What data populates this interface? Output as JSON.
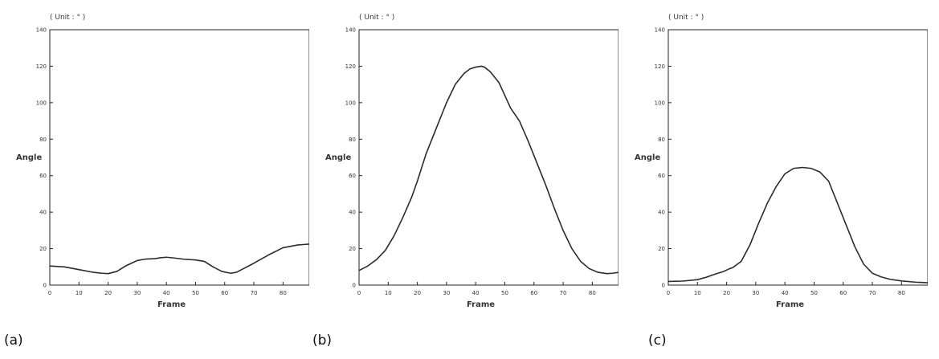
{
  "chart_data": [
    {
      "type": "line",
      "panel_label": "(a)",
      "unit_note": "( Unit : ° )",
      "xlabel": "Frame",
      "ylabel": "Angle",
      "xlim": [
        0,
        89
      ],
      "ylim": [
        0,
        140
      ],
      "xticks": [
        0,
        10,
        20,
        30,
        40,
        50,
        60,
        70,
        80
      ],
      "yticks": [
        0,
        20,
        40,
        60,
        80,
        100,
        120,
        140
      ],
      "x": [
        0,
        5,
        10,
        15,
        18,
        20,
        23,
        26,
        30,
        33,
        36,
        38,
        40,
        43,
        46,
        50,
        53,
        56,
        59,
        62,
        64,
        67,
        70,
        75,
        80,
        85,
        89
      ],
      "y": [
        10.5,
        10,
        8.5,
        7,
        6.5,
        6.3,
        7.5,
        10.5,
        13.5,
        14.3,
        14.5,
        15,
        15.3,
        14.8,
        14.2,
        13.8,
        13,
        10,
        7.5,
        6.5,
        7,
        9.5,
        12,
        16.5,
        20.5,
        22,
        22.5
      ]
    },
    {
      "type": "line",
      "panel_label": "(b)",
      "unit_note": "( Unit : ° )",
      "xlabel": "Frame",
      "ylabel": "Angle",
      "xlim": [
        0,
        89
      ],
      "ylim": [
        0,
        140
      ],
      "xticks": [
        0,
        10,
        20,
        30,
        40,
        50,
        60,
        70,
        80
      ],
      "yticks": [
        0,
        20,
        40,
        60,
        80,
        100,
        120,
        140
      ],
      "x": [
        0,
        3,
        6,
        9,
        12,
        15,
        18,
        20,
        23,
        26,
        30,
        33,
        36,
        38,
        40,
        42,
        43,
        45,
        48,
        50,
        52,
        55,
        58,
        61,
        64,
        67,
        70,
        73,
        76,
        79,
        82,
        85,
        87,
        89
      ],
      "y": [
        8,
        10.5,
        14,
        19,
        27,
        37,
        48,
        57,
        72,
        84,
        100,
        110,
        116,
        118.5,
        119.5,
        120,
        119.5,
        117,
        111,
        104,
        97,
        90,
        79,
        67,
        55,
        42,
        30,
        20,
        13,
        9,
        7,
        6.3,
        6.5,
        7
      ]
    },
    {
      "type": "line",
      "panel_label": "(c)",
      "unit_note": "( Unit : ° )",
      "xlabel": "Frame",
      "ylabel": "Angle",
      "xlim": [
        0,
        89
      ],
      "ylim": [
        0,
        140
      ],
      "xticks": [
        0,
        10,
        20,
        30,
        40,
        50,
        60,
        70,
        80
      ],
      "yticks": [
        0,
        20,
        40,
        60,
        80,
        100,
        120,
        140
      ],
      "x": [
        0,
        5,
        10,
        13,
        16,
        19,
        21,
        22,
        25,
        28,
        31,
        34,
        37,
        40,
        43,
        46,
        49,
        52,
        55,
        58,
        61,
        64,
        67,
        70,
        73,
        76,
        80,
        85,
        89
      ],
      "y": [
        2,
        2.2,
        3,
        4.3,
        6,
        7.5,
        9,
        9.5,
        13,
        22,
        34,
        45,
        54,
        61,
        64,
        64.5,
        64,
        62,
        57,
        45,
        33,
        21,
        11.5,
        6.5,
        4.5,
        3.2,
        2.3,
        1.6,
        1.3
      ]
    }
  ]
}
